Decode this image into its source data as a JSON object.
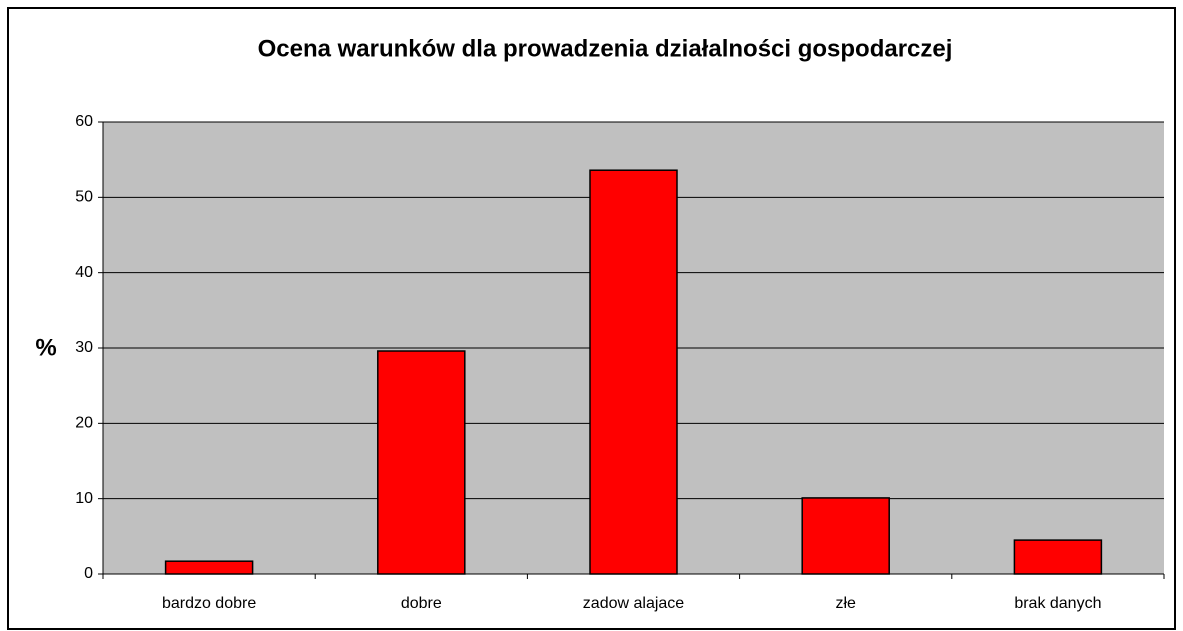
{
  "chart_data": {
    "type": "bar",
    "title": "Ocena warunków dla prowadzenia działalności gospodarczej",
    "y_label": "%",
    "categories": [
      "bardzo dobre",
      "dobre",
      "zadow alajace",
      "złe",
      "brak danych"
    ],
    "values": [
      1.7,
      29.6,
      53.6,
      10.1,
      4.5
    ],
    "color": "#ff0000",
    "ylim": [
      0,
      60
    ],
    "yticks": [
      0,
      10,
      20,
      30,
      40,
      50,
      60
    ],
    "grid": true
  }
}
